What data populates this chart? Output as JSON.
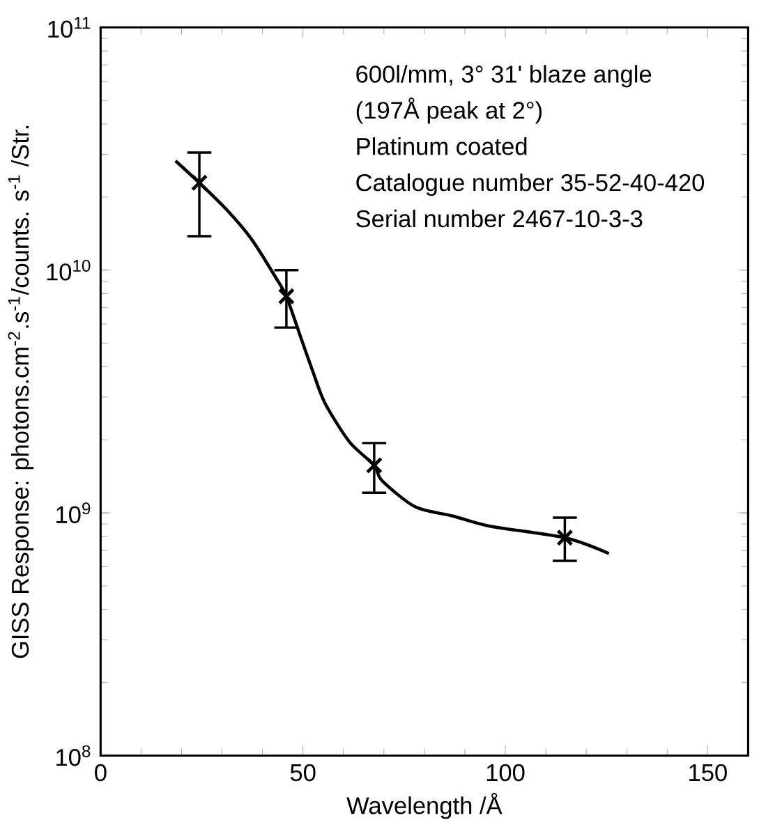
{
  "chart_data": {
    "type": "scatter",
    "xlabel": "Wavelength /Å",
    "ylabel": "GISS Response: photons.cm$^{-2}$.s$^{-1}$/counts. s$^{-1}$ /Str.",
    "annotations": [
      "600l/mm, 3° 31' blaze angle",
      "(197Å peak at 2°)",
      "Platinum coated",
      "Catalogue number 35-52-40-420",
      "Serial number 2467-10-3-3"
    ],
    "log": "y",
    "marker": "cross",
    "xlim": [
      0,
      160
    ],
    "ylim": [
      100000000,
      100000000000
    ],
    "xticks": [
      0,
      50,
      100,
      150
    ],
    "yticks": [
      {
        "value": 100000000,
        "label": "10$^{8}$"
      },
      {
        "value": 1000000000,
        "label": "10$^{9}$"
      },
      {
        "value": 10000000000,
        "label": "10$^{10}$"
      },
      {
        "value": 100000000000,
        "label": "10$^{11}$"
      }
    ],
    "series": [
      {
        "type": "scatter",
        "color": "#000000",
        "x": [
          24.4,
          45.9,
          67.6,
          114.7
        ],
        "values": [
          22900000000,
          7800000000,
          1570000000,
          790000000
        ],
        "errors": [
          [
            13800000000,
            30500000000
          ],
          [
            5800000000,
            10000000000
          ],
          [
            1210000000,
            1940000000
          ],
          [
            634000000,
            955000000
          ]
        ]
      },
      {
        "type": "line",
        "color": "#000000",
        "line_style": "solid",
        "marker": "none",
        "x": [
          18.5,
          24.4,
          31.2,
          37.3,
          43.4,
          45.9,
          49.4,
          52.4,
          55.4,
          61.5,
          67.6,
          69.5,
          77.7,
          87.1,
          96.4,
          114.7,
          125.6
        ],
        "values": [
          28200000000,
          22900000000,
          17700000000,
          13400000000,
          9250000000,
          7800000000,
          5320000000,
          3840000000,
          2840000000,
          1960000000,
          1570000000,
          1360000000,
          1060000000,
          970000000,
          880000000,
          790000000,
          680000000
        ]
      }
    ]
  }
}
